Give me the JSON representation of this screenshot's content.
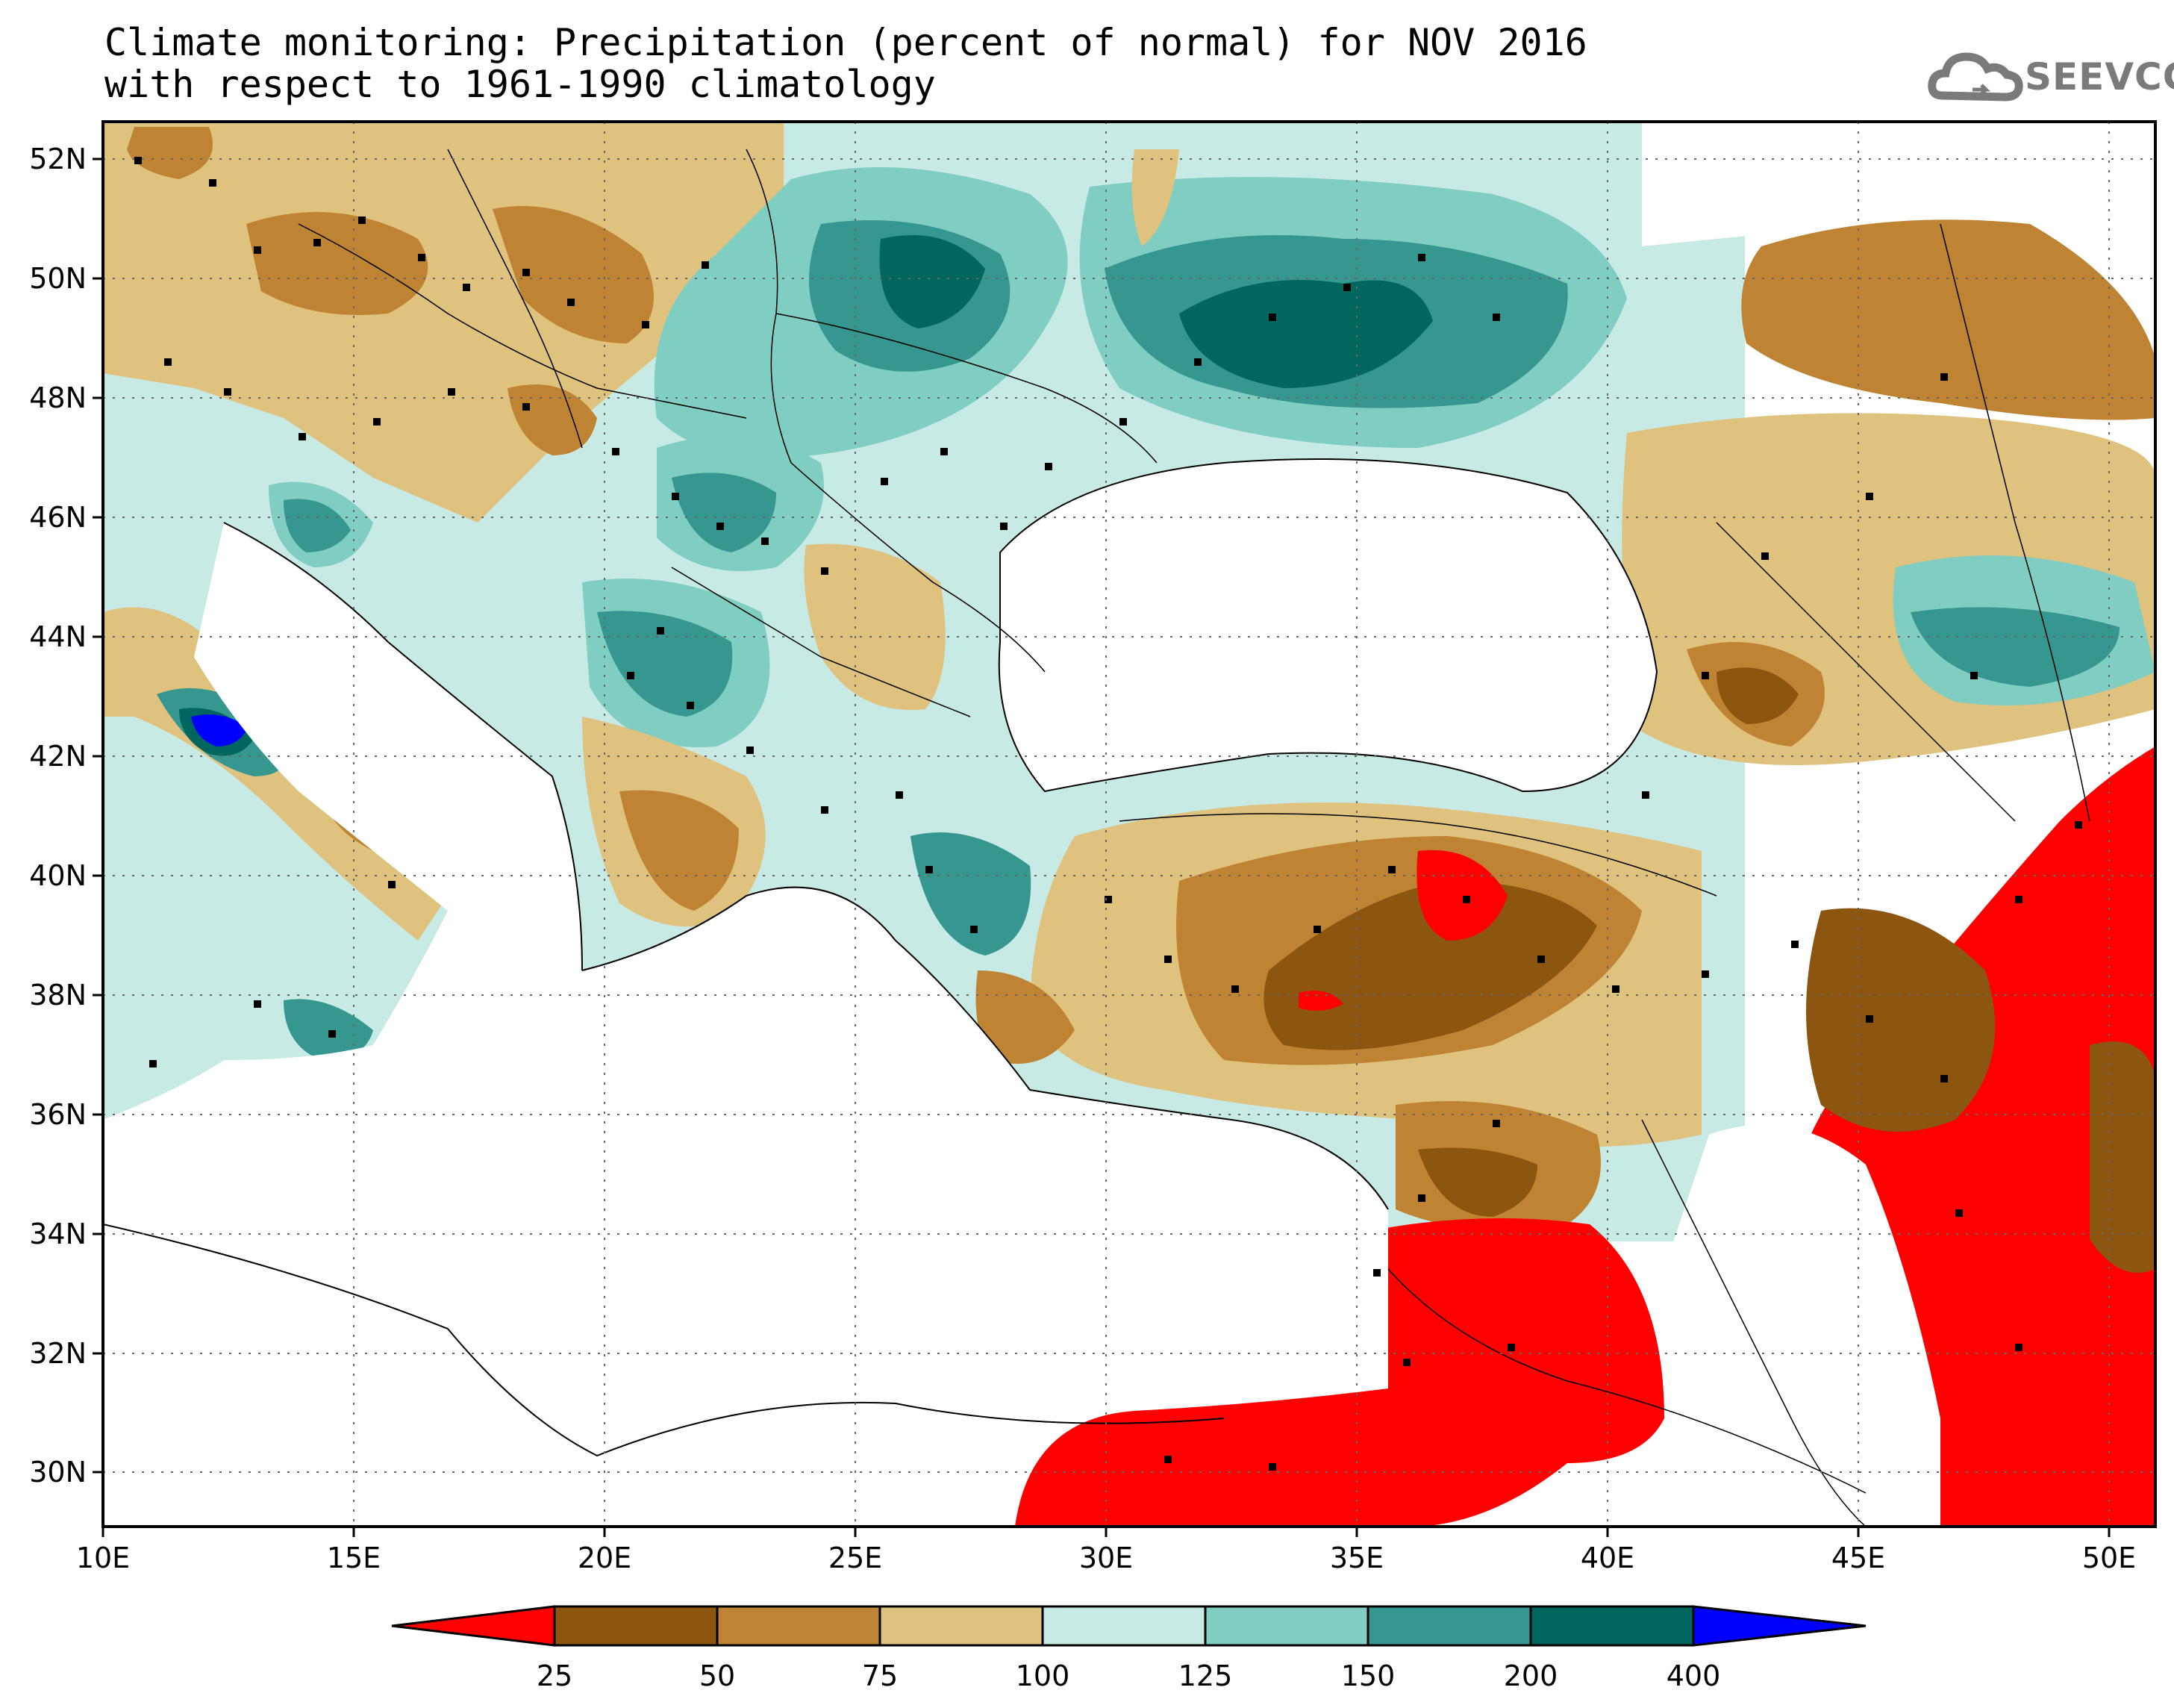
{
  "title": {
    "line1": "Climate monitoring: Precipitation (percent of normal) for NOV 2016",
    "line2": "with respect to 1961-1990 climatology"
  },
  "logo": {
    "icon": "cloud-icon",
    "text": "SEEVCCC"
  },
  "axes": {
    "lat_labels": [
      "30N",
      "32N",
      "34N",
      "36N",
      "38N",
      "40N",
      "42N",
      "44N",
      "46N",
      "48N",
      "50N",
      "52N"
    ],
    "lon_labels": [
      "10E",
      "15E",
      "20E",
      "25E",
      "30E",
      "35E",
      "40E",
      "45E",
      "50E"
    ]
  },
  "colorbar": {
    "levels": [
      "25",
      "50",
      "75",
      "100",
      "125",
      "150",
      "200",
      "400"
    ],
    "colors": [
      "#ff0000",
      "#8c5510",
      "#bf8433",
      "#dfc27d",
      "#c7eae5",
      "#80cdc1",
      "#35978f",
      "#01665e",
      "#0000ff"
    ]
  }
}
